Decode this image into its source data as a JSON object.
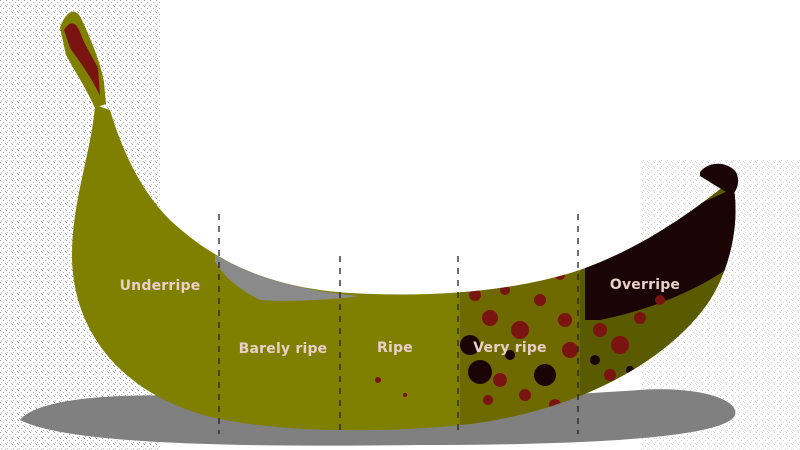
{
  "stages": [
    {
      "label": "Underripe"
    },
    {
      "label": "Barely ripe"
    },
    {
      "label": "Ripe"
    },
    {
      "label": "Very ripe"
    },
    {
      "label": "Overripe"
    }
  ],
  "colors": {
    "peel": "#808000",
    "peel_dark": "#5a5a00",
    "spot": "#7a1410",
    "spot_dark": "#1a0406",
    "shadow": "#808080",
    "divider": "#222222",
    "label": "#e9cfc8"
  }
}
